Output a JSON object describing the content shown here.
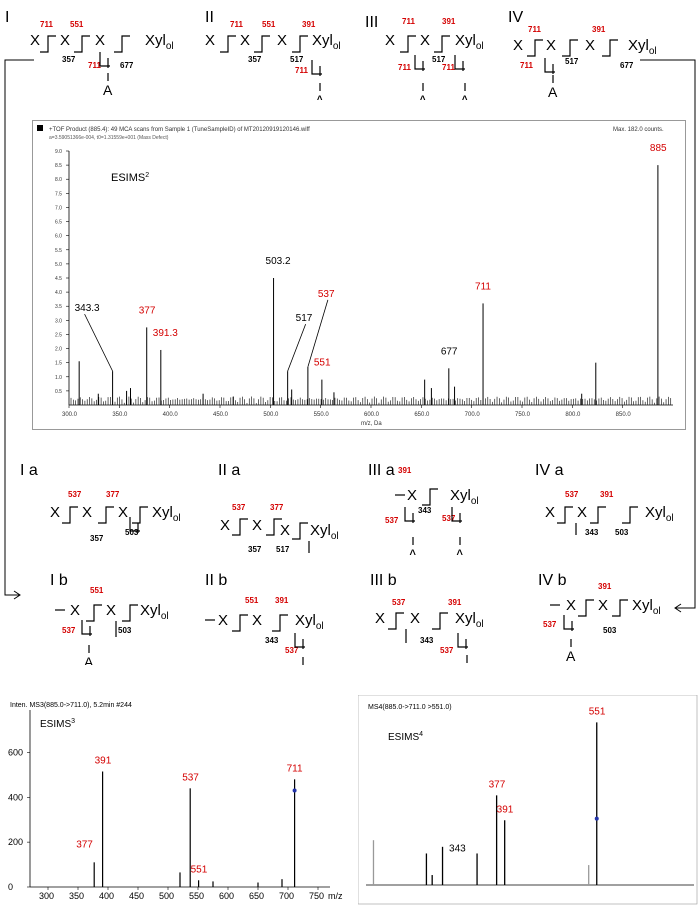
{
  "structures": {
    "row1": [
      {
        "roman": "I",
        "lines": [
          "X",
          "X",
          "X",
          "Xyl_ol"
        ],
        "labels": {
          "red": [
            "711",
            "551",
            "711"
          ],
          "black": [
            "357",
            "677"
          ],
          "side": "A"
        }
      },
      {
        "roman": "II",
        "labels": {
          "red": [
            "711",
            "551",
            "391",
            "711"
          ],
          "black": [
            "357",
            "517"
          ],
          "side": "A"
        }
      },
      {
        "roman": "III",
        "labels": {
          "red": [
            "711",
            "391",
            "711",
            "711"
          ],
          "black": [
            "517"
          ],
          "side": [
            "A",
            "A"
          ]
        }
      },
      {
        "roman": "IV",
        "labels": {
          "red": [
            "711",
            "391",
            "711"
          ],
          "black": [
            "517",
            "677"
          ],
          "side": "A"
        }
      }
    ],
    "row2": [
      {
        "roman": "I a",
        "labels": {
          "red": [
            "537",
            "377"
          ],
          "black": [
            "357",
            "503"
          ]
        }
      },
      {
        "roman": "II a",
        "labels": {
          "red": [
            "537",
            "377"
          ],
          "black": [
            "357",
            "517"
          ]
        }
      },
      {
        "roman": "III a",
        "labels": {
          "red": [
            "391",
            "537",
            "537"
          ],
          "black": [
            "343"
          ],
          "side": [
            "A",
            "A"
          ]
        }
      },
      {
        "roman": "IV a",
        "labels": {
          "red": [
            "537",
            "391"
          ],
          "black": [
            "343",
            "503"
          ]
        }
      }
    ],
    "row3": [
      {
        "roman": "I b",
        "labels": {
          "red": [
            "551",
            "537"
          ],
          "black": [
            "503"
          ],
          "side": "A"
        }
      },
      {
        "roman": "II b",
        "labels": {
          "red": [
            "551",
            "391",
            "537"
          ],
          "black": [
            "343"
          ],
          "side": "A"
        }
      },
      {
        "roman": "III b",
        "labels": {
          "red": [
            "537",
            "391",
            "537"
          ],
          "black": [
            "343"
          ],
          "side": "A"
        }
      },
      {
        "roman": "IV b",
        "labels": {
          "red": [
            "391",
            "537"
          ],
          "black": [
            "503"
          ],
          "side": "A"
        }
      }
    ],
    "x_glyph": "X",
    "xylol_base": "Xyl",
    "xylol_sub": "ol"
  },
  "chart_data": [
    {
      "type": "bar",
      "name_label": "ESIMS",
      "name_sup": "2",
      "header_line1": "+TOF Product (885.4): 49 MCA scans from Sample 1 (TuneSampleID) of MT20120919120146.wiff",
      "header_line2": "Max. 182.0 counts.",
      "header_line3": "a=3.59051366e-004, t0=1.31559e+001 (Mass Defect)",
      "xlabel": "m/z, Da",
      "xlim": [
        300,
        900
      ],
      "ylim": [
        0,
        9.0
      ],
      "xticks": [
        300,
        350,
        400,
        450,
        500,
        550,
        600,
        650,
        700,
        750,
        800,
        850
      ],
      "yticks": [
        0.5,
        1.0,
        1.5,
        2.0,
        2.5,
        3.0,
        3.5,
        4.0,
        4.5,
        5.0,
        5.5,
        6.0,
        6.5,
        7.0,
        7.5,
        8.0,
        8.5,
        9.0
      ],
      "peaks": [
        {
          "mz": 310.1,
          "y": 1.55
        },
        {
          "mz": 329.1,
          "y": 0.4
        },
        {
          "mz": 343.3,
          "y": 1.2,
          "label": "343.3",
          "color": "#000000"
        },
        {
          "mz": 357.2,
          "y": 0.5
        },
        {
          "mz": 361.1,
          "y": 0.6
        },
        {
          "mz": 377.2,
          "y": 2.75,
          "label": "377",
          "color": "#d40000"
        },
        {
          "mz": 391.2,
          "y": 1.95,
          "label": "391.3",
          "color": "#d40000"
        },
        {
          "mz": 433.2,
          "y": 0.4
        },
        {
          "mz": 463.2,
          "y": 0.3
        },
        {
          "mz": 503.2,
          "y": 4.5,
          "label": "503.2",
          "color": "#000000"
        },
        {
          "mz": 517.2,
          "y": 1.2,
          "label": "517",
          "color": "#000000"
        },
        {
          "mz": 521.2,
          "y": 0.55
        },
        {
          "mz": 537.3,
          "y": 1.35,
          "label": "537",
          "color": "#d40000"
        },
        {
          "mz": 551.2,
          "y": 0.9,
          "label": "551",
          "color": "#d40000"
        },
        {
          "mz": 563.2,
          "y": 0.45
        },
        {
          "mz": 653.3,
          "y": 0.9
        },
        {
          "mz": 660.0,
          "y": 0.6
        },
        {
          "mz": 677.3,
          "y": 1.3,
          "label": "677",
          "color": "#000000"
        },
        {
          "mz": 683.0,
          "y": 0.65
        },
        {
          "mz": 711.3,
          "y": 3.6,
          "label": "711",
          "color": "#d40000"
        },
        {
          "mz": 809.3,
          "y": 0.4
        },
        {
          "mz": 823.3,
          "y": 1.5
        },
        {
          "mz": 885.0,
          "y": 8.5,
          "label": "885",
          "color": "#d40000"
        }
      ]
    },
    {
      "type": "bar",
      "name_label": "ESIMS",
      "name_sup": "3",
      "header": "Inten. MS3(885.0->711.0), 5.2min #244",
      "ylabel": "Inten.",
      "xlim": [
        270,
        770
      ],
      "ylim": [
        0,
        700
      ],
      "xticks": [
        300,
        350,
        400,
        450,
        500,
        550,
        600,
        650,
        700,
        750
      ],
      "yticks": [
        0,
        200,
        400,
        600
      ],
      "xunit": "m/z",
      "peaks": [
        {
          "mz": 377,
          "y": 110,
          "label": "377",
          "color": "#d40000"
        },
        {
          "mz": 391,
          "y": 515,
          "label": "391",
          "color": "#d40000"
        },
        {
          "mz": 520,
          "y": 65
        },
        {
          "mz": 537,
          "y": 440,
          "label": "537",
          "color": "#d40000"
        },
        {
          "mz": 551,
          "y": 30,
          "label": "551",
          "color": "#d40000"
        },
        {
          "mz": 575,
          "y": 25
        },
        {
          "mz": 650,
          "y": 20
        },
        {
          "mz": 690,
          "y": 35
        },
        {
          "mz": 711,
          "y": 480,
          "label": "711",
          "color": "#d40000"
        }
      ]
    },
    {
      "type": "bar",
      "name_label": "ESIMS",
      "name_sup": "4",
      "header": "MS4(885.0->711.0 >551.0)",
      "xlim": [
        150,
        720
      ],
      "ylim": [
        0,
        1.0
      ],
      "peaks": [
        {
          "mz": 163,
          "y": 0.27
        },
        {
          "mz": 255,
          "y": 0.19
        },
        {
          "mz": 265,
          "y": 0.06
        },
        {
          "mz": 283,
          "y": 0.23
        },
        {
          "mz": 343,
          "y": 0.19,
          "label": "343",
          "color": "#000000"
        },
        {
          "mz": 377,
          "y": 0.54,
          "label": "377",
          "color": "#d40000"
        },
        {
          "mz": 391,
          "y": 0.39,
          "label": "391",
          "color": "#d40000"
        },
        {
          "mz": 537,
          "y": 0.12
        },
        {
          "mz": 551,
          "y": 0.98,
          "label": "551",
          "color": "#d40000"
        }
      ]
    }
  ]
}
